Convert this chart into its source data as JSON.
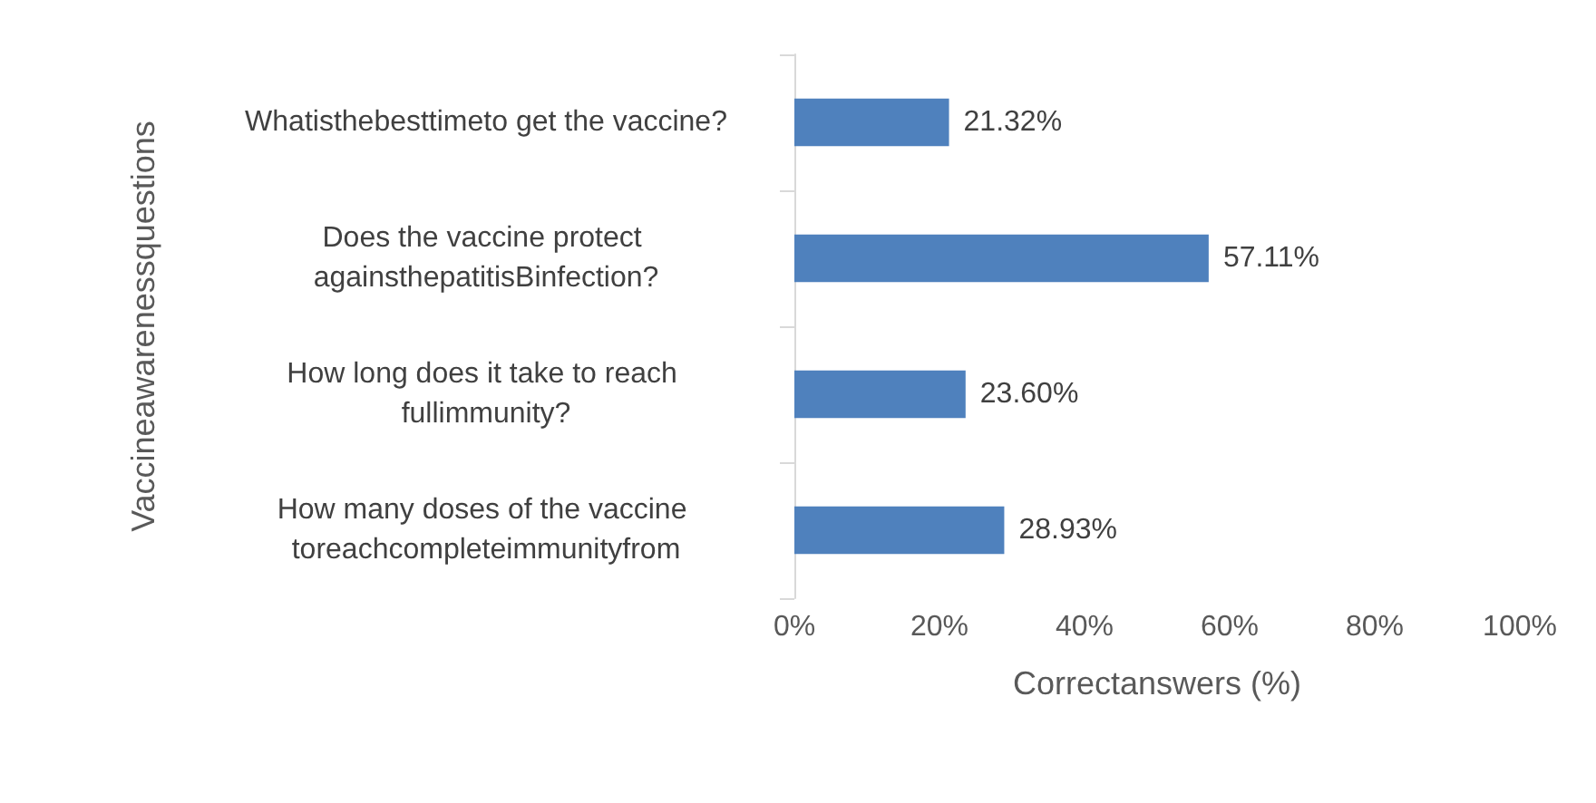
{
  "chart_data": {
    "type": "bar",
    "orientation": "horizontal",
    "xlabel": "Correctanswers (%)",
    "ylabel": "Vaccineawarenessquestions",
    "categories": [
      "Whatisthebesttimeto get the vaccine?",
      "Does the vaccine protect againsthepatitisBinfection?",
      "How long does it take to reach fullimmunity?",
      "How many doses of the vaccine toreachcompleteimmunityfrom"
    ],
    "values": [
      21.32,
      57.11,
      23.6,
      28.93
    ],
    "value_labels": [
      "21.32%",
      "57.11%",
      "23.60%",
      "28.93%"
    ],
    "color": "#4f81bd",
    "xlim": [
      0,
      100
    ],
    "xticks": [
      {
        "value": 0,
        "label": "0%"
      },
      {
        "value": 20,
        "label": "20%"
      },
      {
        "value": 40,
        "label": "40%"
      },
      {
        "value": 60,
        "label": "60%"
      },
      {
        "value": 80,
        "label": "80%"
      },
      {
        "value": 100,
        "label": "100%"
      }
    ],
    "grid": false
  }
}
